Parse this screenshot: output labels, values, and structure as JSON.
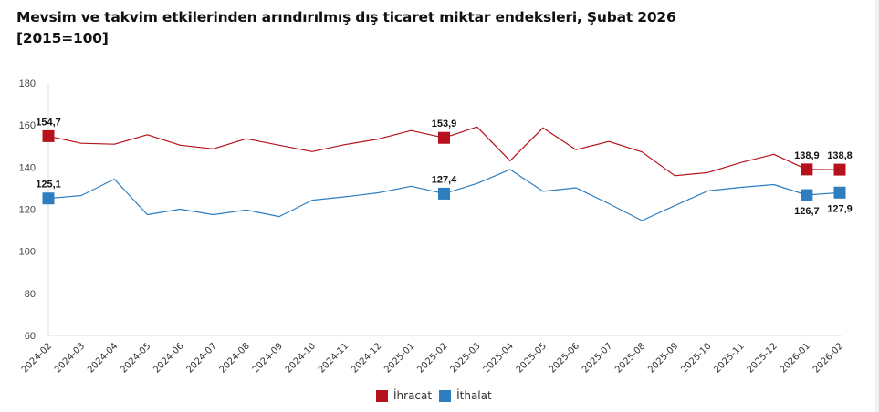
{
  "title": {
    "line1": "Mevsim ve takvim etkilerinden arındırılmış dış ticaret miktar endeksleri, Şubat 2026",
    "line2": "[2015=100]"
  },
  "colors": {
    "ihracat": "#b5121b",
    "ithalat": "#2e7ebf",
    "axis": "#dddddd"
  },
  "legend": [
    {
      "label": "İhracat",
      "color_key": "ihracat"
    },
    {
      "label": "İthalat",
      "color_key": "ithalat"
    }
  ],
  "chart_data": {
    "type": "line",
    "title": "Mevsim ve takvim etkilerinden arındırılmış dış ticaret miktar endeksleri, Şubat 2026 [2015=100]",
    "xlabel": "",
    "ylabel": "",
    "ylim": [
      60,
      180
    ],
    "yticks": [
      180,
      160,
      140,
      120,
      100,
      80,
      60
    ],
    "grid": false,
    "legend_position": "bottom",
    "categories": [
      "2024-02",
      "2024-03",
      "2024-04",
      "2024-05",
      "2024-06",
      "2024-07",
      "2024-08",
      "2024-09",
      "2024-10",
      "2024-11",
      "2024-12",
      "2025-01",
      "2025-02",
      "2025-03",
      "2025-04",
      "2025-05",
      "2025-06",
      "2025-07",
      "2025-08",
      "2025-09",
      "2025-10",
      "2025-11",
      "2025-12",
      "2026-01",
      "2026-02"
    ],
    "series": [
      {
        "name": "İhracat",
        "color_key": "ihracat",
        "values": [
          154.7,
          151.3,
          150.9,
          155.4,
          150.4,
          148.7,
          153.5,
          150.4,
          147.4,
          150.7,
          153.3,
          157.4,
          153.9,
          159.1,
          143.0,
          158.7,
          148.3,
          152.2,
          147.2,
          135.9,
          137.4,
          142.2,
          146.1,
          138.9,
          138.8
        ],
        "labeled_points": [
          {
            "index": 0,
            "text": "154,7",
            "position": "above"
          },
          {
            "index": 12,
            "text": "153,9",
            "position": "above"
          },
          {
            "index": 23,
            "text": "138,9",
            "position": "above"
          },
          {
            "index": 24,
            "text": "138,8",
            "position": "above"
          }
        ]
      },
      {
        "name": "İthalat",
        "color_key": "ithalat",
        "values": [
          125.1,
          126.5,
          134.3,
          117.4,
          120.0,
          117.4,
          119.6,
          116.5,
          124.3,
          125.9,
          127.8,
          130.9,
          127.4,
          132.2,
          138.9,
          128.5,
          130.2,
          122.6,
          114.6,
          121.7,
          128.7,
          130.4,
          131.7,
          126.7,
          127.9
        ],
        "labeled_points": [
          {
            "index": 0,
            "text": "125,1",
            "position": "above"
          },
          {
            "index": 12,
            "text": "127,4",
            "position": "above"
          },
          {
            "index": 23,
            "text": "126,7",
            "position": "below"
          },
          {
            "index": 24,
            "text": "127,9",
            "position": "below"
          }
        ]
      }
    ]
  }
}
